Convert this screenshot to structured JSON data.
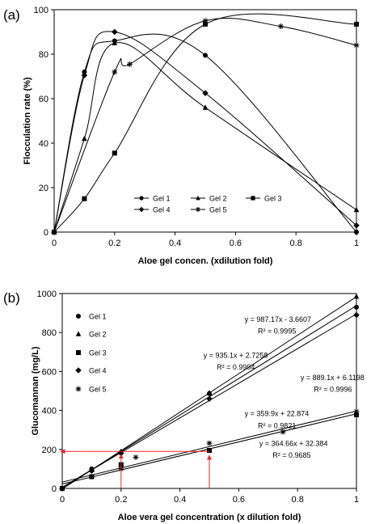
{
  "panels": [
    "(a)",
    "(b)"
  ],
  "chart_data": [
    {
      "panel": "(a)",
      "type": "line",
      "xlabel": "Aloe gel concen. (xdilution fold)",
      "ylabel": "Flocculation rate (%)",
      "xlim": [
        0,
        1
      ],
      "ylim": [
        0,
        100
      ],
      "xticks": [
        0,
        0.2,
        0.4,
        0.6,
        0.8,
        1
      ],
      "yticks": [
        0,
        20,
        40,
        60,
        80,
        100
      ],
      "xtick_labels": [
        "0",
        "0.2",
        "0.4",
        "0.6",
        "0.8",
        "1"
      ],
      "ytick_labels": [
        "0",
        "20",
        "40",
        "60",
        "80",
        "100"
      ],
      "grid": false,
      "legend_position": "bottom-center",
      "series": [
        {
          "name": "Gel 1",
          "marker": "circle",
          "x": [
            0,
            0.1,
            0.2,
            0.5,
            1
          ],
          "y": [
            0,
            72,
            86,
            79.5,
            0
          ]
        },
        {
          "name": "Gel 2",
          "marker": "triangle",
          "x": [
            0,
            0.1,
            0.2,
            0.5,
            1
          ],
          "y": [
            0,
            42,
            85,
            56,
            10
          ]
        },
        {
          "name": "Gel 3",
          "marker": "square",
          "x": [
            0,
            0.1,
            0.2,
            0.5,
            1
          ],
          "y": [
            0,
            15,
            35.5,
            93.5,
            93.5
          ]
        },
        {
          "name": "Gel 4",
          "marker": "diamond",
          "x": [
            0,
            0.1,
            0.2,
            0.5,
            1
          ],
          "y": [
            0,
            70.5,
            90,
            62.5,
            3
          ]
        },
        {
          "name": "Gel 5",
          "marker": "asterisk",
          "x": [
            0,
            0.2,
            0.25,
            0.5,
            0.75,
            1
          ],
          "y": [
            0,
            72,
            75.5,
            95,
            92.5,
            84
          ]
        }
      ]
    },
    {
      "panel": "(b)",
      "type": "scatter",
      "xlabel": "Aloe vera gel concentration (x dilution fold)",
      "ylabel": "Glucomannan (mg/L)",
      "xlim": [
        0,
        1
      ],
      "ylim": [
        0,
        1000
      ],
      "xticks": [
        0,
        0.2,
        0.4,
        0.6,
        0.8,
        1
      ],
      "yticks": [
        0,
        200,
        400,
        600,
        800,
        1000
      ],
      "xtick_labels": [
        "0",
        "0.2",
        "0.4",
        "0.6",
        "0.8",
        "1"
      ],
      "ytick_labels": [
        "0",
        "200",
        "400",
        "600",
        "800",
        "1000"
      ],
      "grid": false,
      "legend_position": "top-left",
      "series": [
        {
          "name": "Gel 1",
          "marker": "circle",
          "x": [
            0,
            0.1,
            0.2,
            0.5,
            1
          ],
          "y": [
            0,
            100,
            185,
            487,
            930
          ],
          "fit": {
            "slope": 935.1,
            "intercept": 2.7258
          }
        },
        {
          "name": "Gel 2",
          "marker": "triangle",
          "x": [
            0,
            0.1,
            0.2,
            0.5,
            1
          ],
          "y": [
            0,
            95,
            190,
            490,
            985
          ],
          "fit": {
            "slope": 987.17,
            "intercept": -3.6607
          }
        },
        {
          "name": "Gel 3",
          "marker": "square",
          "x": [
            0,
            0.1,
            0.2,
            0.5,
            1
          ],
          "y": [
            0,
            60,
            122,
            195,
            378
          ],
          "fit": {
            "slope": 359.9,
            "intercept": 22.874
          }
        },
        {
          "name": "Gel 4",
          "marker": "diamond",
          "x": [
            0,
            0.1,
            0.2,
            0.5,
            1
          ],
          "y": [
            0,
            90,
            180,
            460,
            890
          ],
          "fit": {
            "slope": 889.1,
            "intercept": 6.1198
          }
        },
        {
          "name": "Gel 5",
          "marker": "asterisk",
          "x": [
            0,
            0.2,
            0.25,
            0.5,
            0.75,
            1
          ],
          "y": [
            0,
            100,
            160,
            232,
            290,
            395
          ],
          "fit": {
            "slope": 364.66,
            "intercept": 32.384
          }
        }
      ],
      "annotations": [
        {
          "text": "y = 987.17x - 3.6607",
          "x": 0.62,
          "y": 855
        },
        {
          "text": "R² = 0.9995",
          "x": 0.665,
          "y": 795
        },
        {
          "text": "y = 935.1x + 2.7258",
          "x": 0.48,
          "y": 670
        },
        {
          "text": "R² = 0.9994",
          "x": 0.525,
          "y": 610
        },
        {
          "text": "y = 889.1x + 6.1198",
          "x": 0.81,
          "y": 555
        },
        {
          "text": "R² = 0.9996",
          "x": 0.855,
          "y": 495
        },
        {
          "text": "y = 359.9x + 22.874",
          "x": 0.62,
          "y": 372
        },
        {
          "text": "R² = 0.9821",
          "x": 0.665,
          "y": 310
        },
        {
          "text": "y = 364.66x + 32.384",
          "x": 0.67,
          "y": 218
        },
        {
          "text": "R² = 0.9685",
          "x": 0.715,
          "y": 158
        }
      ],
      "reference_marks": {
        "color": "#e8252a",
        "y_level": 190,
        "x_positions": [
          0.2,
          0.5
        ],
        "arrow_tips": [
          [
            0.2,
            175
          ],
          [
            0.5,
            170
          ]
        ]
      }
    }
  ]
}
